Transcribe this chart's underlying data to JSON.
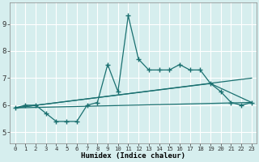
{
  "xlabel": "Humidex (Indice chaleur)",
  "bg_color": "#d6eeee",
  "grid_color": "#ffffff",
  "line_color": "#1a7070",
  "x_ticks": [
    0,
    1,
    2,
    3,
    4,
    5,
    6,
    7,
    8,
    9,
    10,
    11,
    12,
    13,
    14,
    15,
    16,
    17,
    18,
    19,
    20,
    21,
    22,
    23
  ],
  "y_ticks": [
    5,
    6,
    7,
    8,
    9
  ],
  "xlim": [
    -0.5,
    23.5
  ],
  "ylim": [
    4.6,
    9.8
  ],
  "hours": [
    0,
    1,
    2,
    3,
    4,
    5,
    6,
    7,
    8,
    9,
    10,
    11,
    12,
    13,
    14,
    15,
    16,
    17,
    18,
    19,
    20,
    21,
    22,
    23
  ],
  "data_line": [
    5.9,
    6.0,
    6.0,
    5.7,
    5.4,
    5.4,
    5.4,
    6.0,
    6.1,
    7.5,
    6.5,
    9.3,
    7.7,
    7.3,
    7.3,
    7.3,
    7.5,
    7.3,
    7.3,
    6.8,
    6.5,
    6.1,
    6.0,
    6.1
  ],
  "upper_line_x": [
    0,
    23
  ],
  "upper_line_y": [
    5.9,
    7.0
  ],
  "lower_line_x": [
    0,
    23
  ],
  "lower_line_y": [
    5.9,
    6.1
  ],
  "mid_line_x": [
    0,
    19,
    23
  ],
  "mid_line_y": [
    5.9,
    6.8,
    6.1
  ]
}
